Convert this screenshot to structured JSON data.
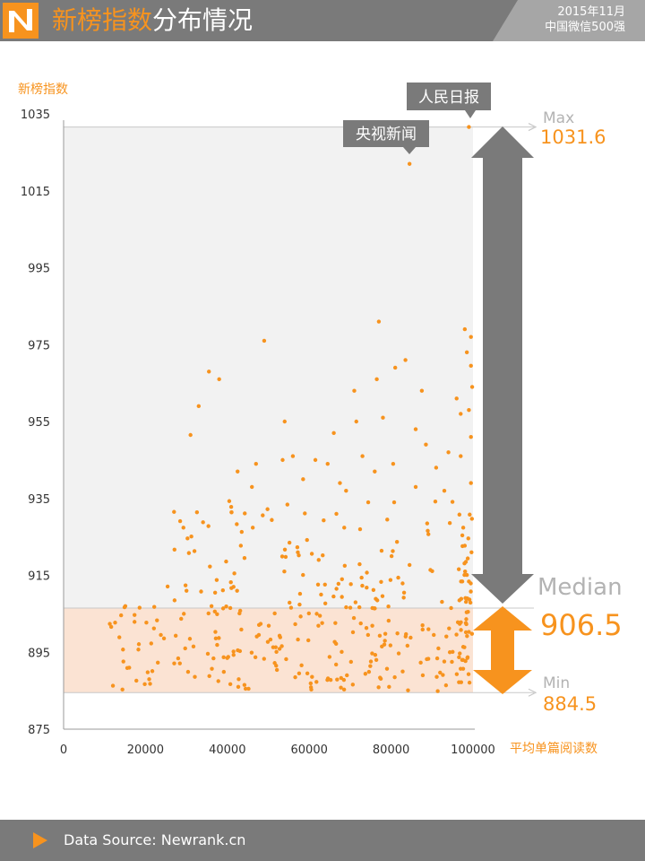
{
  "header": {
    "title_accent": "新榜指数",
    "title_rest": "分布情况",
    "right_line1": "2015年11月",
    "right_line2": "中国微信500强"
  },
  "footer": {
    "source": "Data Source: Newrank.cn"
  },
  "colors": {
    "accent": "#f7931e",
    "header_bg": "#7a7a7a",
    "upper_band": "#f2f2f2",
    "lower_band": "#fbe3d3",
    "dark_arrow": "#7a7a7a"
  },
  "chart_data": {
    "type": "scatter",
    "xlabel": "平均单篇阅读数",
    "ylabel": "新榜指数",
    "xlim": [
      0,
      100000
    ],
    "ylim": [
      875,
      1035
    ],
    "x_ticks": [
      "0",
      "20000",
      "40000",
      "60000",
      "80000",
      "100000"
    ],
    "y_ticks": [
      "875",
      "895",
      "915",
      "935",
      "955",
      "975",
      "995",
      "1015",
      "1035"
    ],
    "stats": {
      "max_label": "Max",
      "max_value": "1031.6",
      "median_label": "Median",
      "median_value": "906.5",
      "min_label": "Min",
      "min_value": "884.5"
    },
    "callouts": [
      {
        "text": "人民日报",
        "x": 99000,
        "y": 1031.6
      },
      {
        "text": "央视新闻",
        "x": 84500,
        "y": 1022.0
      }
    ],
    "series": [
      {
        "points": [
          [
            99000,
            1031.6
          ],
          [
            84500,
            1022.0
          ],
          [
            77000,
            981.0
          ],
          [
            49000,
            976.0
          ],
          [
            98000,
            979.0
          ],
          [
            99500,
            977.0
          ],
          [
            35500,
            968.0
          ],
          [
            38000,
            966.0
          ],
          [
            83500,
            971.0
          ],
          [
            81000,
            969.0
          ],
          [
            98500,
            973.0
          ],
          [
            76500,
            966.0
          ],
          [
            99500,
            969.5
          ],
          [
            71000,
            963.0
          ],
          [
            87500,
            963.0
          ],
          [
            96000,
            961.0
          ],
          [
            33000,
            959.0
          ],
          [
            99800,
            964.0
          ],
          [
            78000,
            956.0
          ],
          [
            54000,
            955.0
          ],
          [
            71500,
            955.0
          ],
          [
            86000,
            953.0
          ],
          [
            97000,
            957.0
          ],
          [
            99000,
            958.0
          ],
          [
            31000,
            951.5
          ],
          [
            66000,
            952.0
          ],
          [
            88500,
            949.0
          ],
          [
            97000,
            946.0
          ],
          [
            99500,
            951.0
          ],
          [
            94000,
            947.0
          ],
          [
            73000,
            946.0
          ],
          [
            47000,
            944.0
          ],
          [
            53500,
            945.0
          ],
          [
            64500,
            944.0
          ],
          [
            56000,
            946.0
          ],
          [
            91000,
            943.0
          ],
          [
            42500,
            942.0
          ],
          [
            80500,
            944.0
          ],
          [
            61500,
            945.0
          ],
          [
            76000,
            942.0
          ],
          [
            67500,
            939.0
          ],
          [
            99500,
            939.0
          ],
          [
            86000,
            938.0
          ],
          [
            93000,
            937.0
          ],
          [
            69000,
            937.0
          ],
          [
            46000,
            938.0
          ],
          [
            58500,
            940.0
          ]
        ]
      }
    ],
    "band_upper": [
      906.5,
      1031.6
    ],
    "band_lower": [
      884.5,
      906.5
    ]
  }
}
